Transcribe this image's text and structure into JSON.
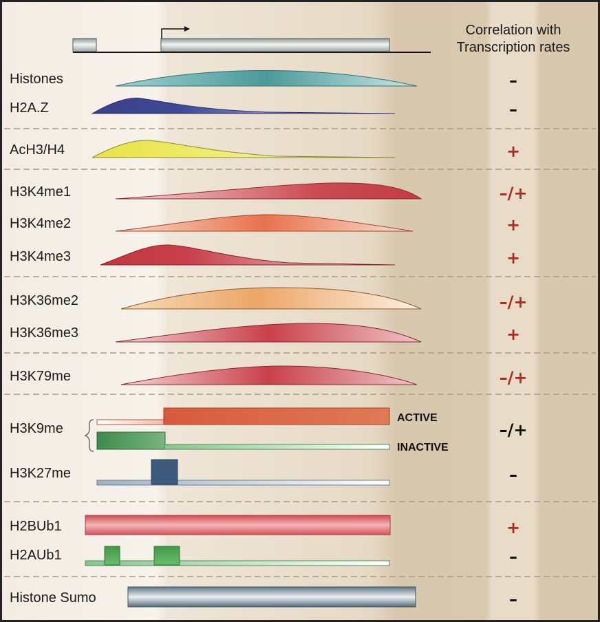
{
  "header": {
    "line1": "Correlation with",
    "line2": "Transcription rates"
  },
  "colors": {
    "positive": "#b22a1e",
    "neutral": "#111111"
  },
  "rows": [
    {
      "label": "Histones",
      "sign": "–"
    },
    {
      "label": "H2A.Z",
      "sign": "–"
    },
    {
      "label": "AcH3/H4",
      "sign": "+"
    },
    {
      "label": "H3K4me1",
      "sign": "–/+"
    },
    {
      "label": "H3K4me2",
      "sign": "+"
    },
    {
      "label": "H3K4me3",
      "sign": "+"
    },
    {
      "label": "H3K36me2",
      "sign": "–/+"
    },
    {
      "label": "H3K36me3",
      "sign": "+"
    },
    {
      "label": "H3K79me",
      "sign": "–/+"
    },
    {
      "label": "H3K9me",
      "sign": "–/+"
    },
    {
      "label": "H3K27me",
      "sign": "–"
    },
    {
      "label": "H2BUb1",
      "sign": "+"
    },
    {
      "label": "H2AUb1",
      "sign": "–"
    },
    {
      "label": "Histone Sumo",
      "sign": "–"
    }
  ],
  "h3k9me_states": {
    "active": "ACTIVE",
    "inactive": "INACTIVE"
  }
}
